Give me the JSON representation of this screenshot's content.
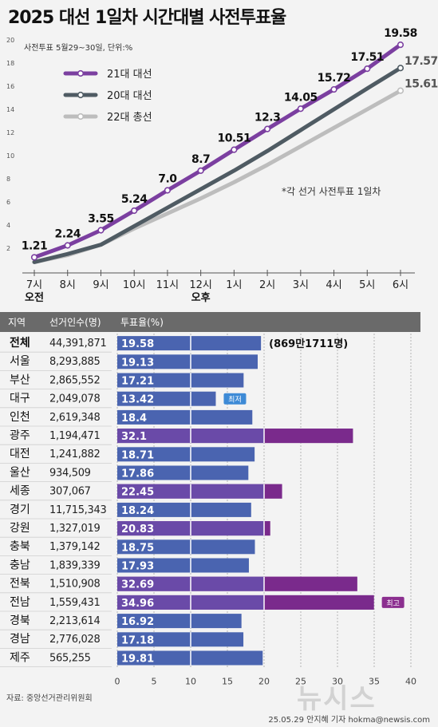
{
  "title": "2025 대선 1일차 시간대별 사전투표율",
  "chart_data": [
    {
      "type": "line",
      "subtitle": "사전투표 5월29~30일, 단위:%",
      "note": "*각 선거 사전투표 1일차",
      "x": [
        "7시",
        "8시",
        "9시",
        "10시",
        "11시",
        "12시",
        "1시",
        "2시",
        "3시",
        "4시",
        "5시",
        "6시"
      ],
      "x_group_labels": [
        {
          "label": "오전",
          "at": "7시"
        },
        {
          "label": "오후",
          "at": "12시"
        }
      ],
      "yticks": [
        2,
        4,
        6,
        8,
        10,
        12,
        14,
        16,
        18,
        20
      ],
      "ylim": [
        0,
        20
      ],
      "series": [
        {
          "name": "21대 대선",
          "color": "#7b3fa0",
          "values": [
            1.21,
            2.24,
            3.55,
            5.24,
            7.0,
            8.7,
            10.51,
            12.3,
            14.05,
            15.72,
            17.51,
            19.58
          ],
          "labels": [
            "1.21",
            "2.24",
            "3.55",
            "5.24",
            "7.0",
            "8.7",
            "10.51",
            "12.3",
            "14.05",
            "15.72",
            "17.51",
            "19.58"
          ]
        },
        {
          "name": "20대 대선",
          "color": "#4f5b63",
          "values": [
            0.8,
            1.5,
            2.3,
            3.9,
            5.5,
            7.1,
            8.7,
            10.4,
            12.2,
            14.0,
            15.8,
            17.57
          ],
          "labels": [
            "",
            "",
            "",
            "",
            "",
            "",
            "",
            "",
            "",
            "",
            "",
            "17.57"
          ]
        },
        {
          "name": "22대 총선",
          "color": "#bdbdbd",
          "values": [
            0.8,
            1.4,
            2.3,
            3.7,
            5.0,
            6.3,
            7.7,
            9.2,
            10.8,
            12.4,
            14.0,
            15.61
          ],
          "labels": [
            "",
            "",
            "",
            "",
            "",
            "",
            "",
            "",
            "",
            "",
            "",
            "15.61"
          ]
        }
      ]
    },
    {
      "type": "bar",
      "header": {
        "region": "지역",
        "voters": "선거인수(명)",
        "rate": "투표율(%)"
      },
      "xticks": [
        0,
        5,
        10,
        15,
        20,
        25,
        30,
        35,
        40
      ],
      "xlim": [
        0,
        40
      ],
      "colors": {
        "low": "#4a64b0",
        "high": "#7a2a8c"
      },
      "total_note": "(869만1711명)",
      "badges": {
        "lowest": "최저",
        "highest": "최고"
      },
      "rows": [
        {
          "region": "전체",
          "voters": "44,391,871",
          "value": 19.58,
          "label": "19.58"
        },
        {
          "region": "서울",
          "voters": "8,293,885",
          "value": 19.13,
          "label": "19.13"
        },
        {
          "region": "부산",
          "voters": "2,865,552",
          "value": 17.21,
          "label": "17.21"
        },
        {
          "region": "대구",
          "voters": "2,049,078",
          "value": 13.42,
          "label": "13.42",
          "badge": "lowest"
        },
        {
          "region": "인천",
          "voters": "2,619,348",
          "value": 18.4,
          "label": "18.4"
        },
        {
          "region": "광주",
          "voters": "1,194,471",
          "value": 32.1,
          "label": "32.1"
        },
        {
          "region": "대전",
          "voters": "1,241,882",
          "value": 18.71,
          "label": "18.71"
        },
        {
          "region": "울산",
          "voters": "934,509",
          "value": 17.86,
          "label": "17.86"
        },
        {
          "region": "세종",
          "voters": "307,067",
          "value": 22.45,
          "label": "22.45"
        },
        {
          "region": "경기",
          "voters": "11,715,343",
          "value": 18.24,
          "label": "18.24"
        },
        {
          "region": "강원",
          "voters": "1,327,019",
          "value": 20.83,
          "label": "20.83"
        },
        {
          "region": "충북",
          "voters": "1,379,142",
          "value": 18.75,
          "label": "18.75"
        },
        {
          "region": "충남",
          "voters": "1,839,339",
          "value": 17.93,
          "label": "17.93"
        },
        {
          "region": "전북",
          "voters": "1,510,908",
          "value": 32.69,
          "label": "32.69"
        },
        {
          "region": "전남",
          "voters": "1,559,431",
          "value": 34.96,
          "label": "34.96",
          "badge": "highest"
        },
        {
          "region": "경북",
          "voters": "2,213,614",
          "value": 16.92,
          "label": "16.92"
        },
        {
          "region": "경남",
          "voters": "2,776,028",
          "value": 17.18,
          "label": "17.18"
        },
        {
          "region": "제주",
          "voters": "565,255",
          "value": 19.81,
          "label": "19.81"
        }
      ]
    }
  ],
  "source": "자료: 중앙선거관리위원회",
  "credit": "25.05.29 안지혜 기자 hokma@newsis.com",
  "watermark": "뉴시스"
}
